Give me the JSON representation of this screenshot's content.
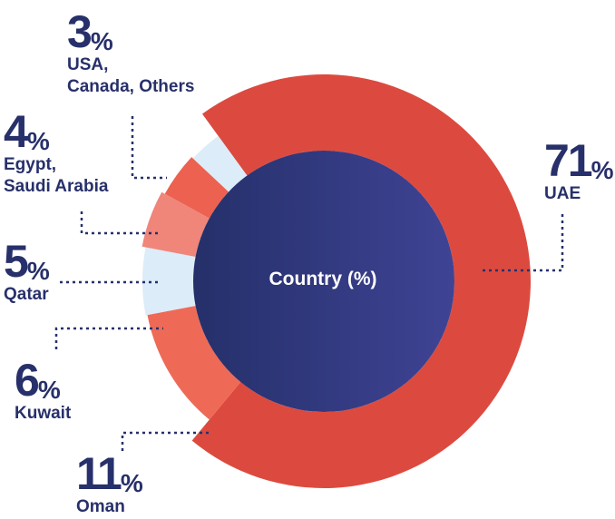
{
  "chart_data": {
    "type": "pie",
    "title": "Country (%)",
    "slices": [
      {
        "label": "UAE",
        "value": 71,
        "pct_number": "71",
        "pct_sign": "%",
        "color": "#dc4a3f"
      },
      {
        "label": "Oman",
        "value": 11,
        "pct_number": "11",
        "pct_sign": "%",
        "color": "#ee6a57"
      },
      {
        "label": "Kuwait",
        "value": 6,
        "pct_number": "6",
        "pct_sign": "%",
        "color": "#dcecf8"
      },
      {
        "label": "Qatar",
        "value": 5,
        "pct_number": "5",
        "pct_sign": "%",
        "color": "#f0857a"
      },
      {
        "label": "Egypt,\nSaudi Arabia",
        "value": 4,
        "pct_number": "4",
        "pct_sign": "%",
        "color": "#ec6150"
      },
      {
        "label": "USA,\nCanada, Others",
        "value": 3,
        "pct_number": "3",
        "pct_sign": "%",
        "color": "#dcecf8"
      }
    ]
  },
  "colors": {
    "text": "#27306a",
    "center_gradient_start": "#25306a",
    "center_gradient_end": "#3f4394",
    "leader_line": "#27306a"
  }
}
